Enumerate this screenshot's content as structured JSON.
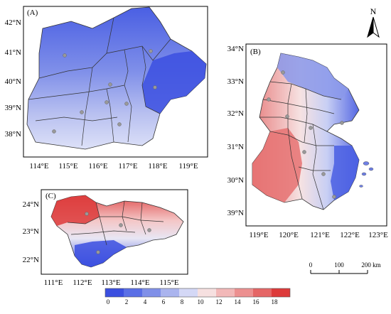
{
  "panels": {
    "a": {
      "label": "(A)",
      "lat_ticks": [
        "42°N",
        "41°N",
        "40°N",
        "39°N",
        "38°N"
      ],
      "lon_ticks": [
        "114°E",
        "115°E",
        "116°E",
        "117°E",
        "118°E",
        "119°E"
      ]
    },
    "b": {
      "label": "(B)",
      "lat_ticks": [
        "34°N",
        "33°N",
        "32°N",
        "31°N",
        "30°N",
        "39°N"
      ],
      "lon_ticks": [
        "119°E",
        "120°E",
        "121°E",
        "122°E",
        "123°E"
      ]
    },
    "c": {
      "label": "(C)",
      "lat_ticks": [
        "24°N",
        "23°N",
        "22°N"
      ],
      "lon_ticks": [
        "111°E",
        "112°E",
        "113°E",
        "114°E",
        "115°E"
      ]
    }
  },
  "north_arrow": {
    "letter": "N"
  },
  "scale_bar": {
    "labels": [
      "0",
      "100",
      "200 km"
    ]
  },
  "legend": {
    "colors": [
      "#3b4fe0",
      "#5a6fe6",
      "#8090e8",
      "#aab4ee",
      "#d4d8f6",
      "#f6e0e0",
      "#f2b8b8",
      "#ec9090",
      "#e56666",
      "#dd3b3b"
    ],
    "ticks": [
      "0",
      "2",
      "4",
      "6",
      "8",
      "10",
      "12",
      "14",
      "16",
      "18"
    ]
  }
}
